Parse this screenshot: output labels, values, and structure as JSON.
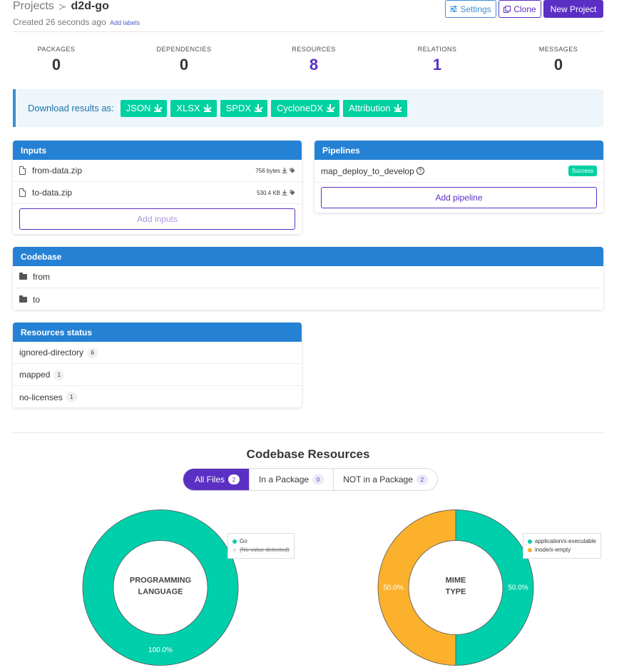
{
  "header": {
    "breadcrumb_root": "Projects",
    "breadcrumb_separator": "≻",
    "project_name": "d2d-go",
    "created": "Created 26 seconds ago",
    "add_labels": "Add labels",
    "settings_label": "Settings",
    "clone_label": "Clone",
    "new_project_label": "New Project"
  },
  "stats": [
    {
      "label": "PACKAGES",
      "value": "0",
      "link": false
    },
    {
      "label": "DEPENDENCIES",
      "value": "0",
      "link": false
    },
    {
      "label": "RESOURCES",
      "value": "8",
      "link": true
    },
    {
      "label": "RELATIONS",
      "value": "1",
      "link": true
    },
    {
      "label": "MESSAGES",
      "value": "0",
      "link": false
    }
  ],
  "download": {
    "label": "Download results as:",
    "formats": [
      "JSON",
      "XLSX",
      "SPDX",
      "CycloneDX",
      "Attribution"
    ]
  },
  "inputs": {
    "title": "Inputs",
    "files": [
      {
        "name": "from-data.zip",
        "size": "756 bytes"
      },
      {
        "name": "to-data.zip",
        "size": "530.4 KB"
      }
    ],
    "add_label": "Add inputs"
  },
  "pipelines": {
    "title": "Pipelines",
    "items": [
      {
        "name": "map_deploy_to_develop",
        "help": "?",
        "status": "Success"
      }
    ],
    "add_label": "Add pipeline"
  },
  "codebase": {
    "title": "Codebase",
    "folders": [
      "from",
      "to"
    ]
  },
  "resources_status": {
    "title": "Resources status",
    "items": [
      {
        "name": "ignored-directory",
        "count": "6"
      },
      {
        "name": "mapped",
        "count": "1"
      },
      {
        "name": "no-licenses",
        "count": "1"
      }
    ]
  },
  "codebase_resources": {
    "title": "Codebase Resources",
    "tabs": [
      {
        "label": "All Files",
        "count": "2",
        "active": true
      },
      {
        "label": "In a Package",
        "count": "0",
        "active": false
      },
      {
        "label": "NOT in a Package",
        "count": "2",
        "active": false
      }
    ]
  },
  "colors": {
    "teal": "#00cfac",
    "orange": "#fbb12c",
    "purple": "#5b2fc4",
    "blue": "#2581d4"
  },
  "chart_data": [
    {
      "type": "pie",
      "title": "PROGRAMMING LANGUAGE",
      "series": [
        {
          "name": "Go",
          "value": 100.0,
          "label": "100.0%",
          "color": "#00cfac"
        },
        {
          "name": "(No value detected)",
          "value": 0,
          "label": "",
          "color": "#e8e8e8",
          "strike": true
        }
      ]
    },
    {
      "type": "pie",
      "title": "MIME TYPE",
      "series": [
        {
          "name": "application/x-executable",
          "value": 50.0,
          "label": "50.0%",
          "color": "#00cfac"
        },
        {
          "name": "inode/x-empty",
          "value": 50.0,
          "label": "50.0%",
          "color": "#fbb12c"
        }
      ]
    }
  ]
}
